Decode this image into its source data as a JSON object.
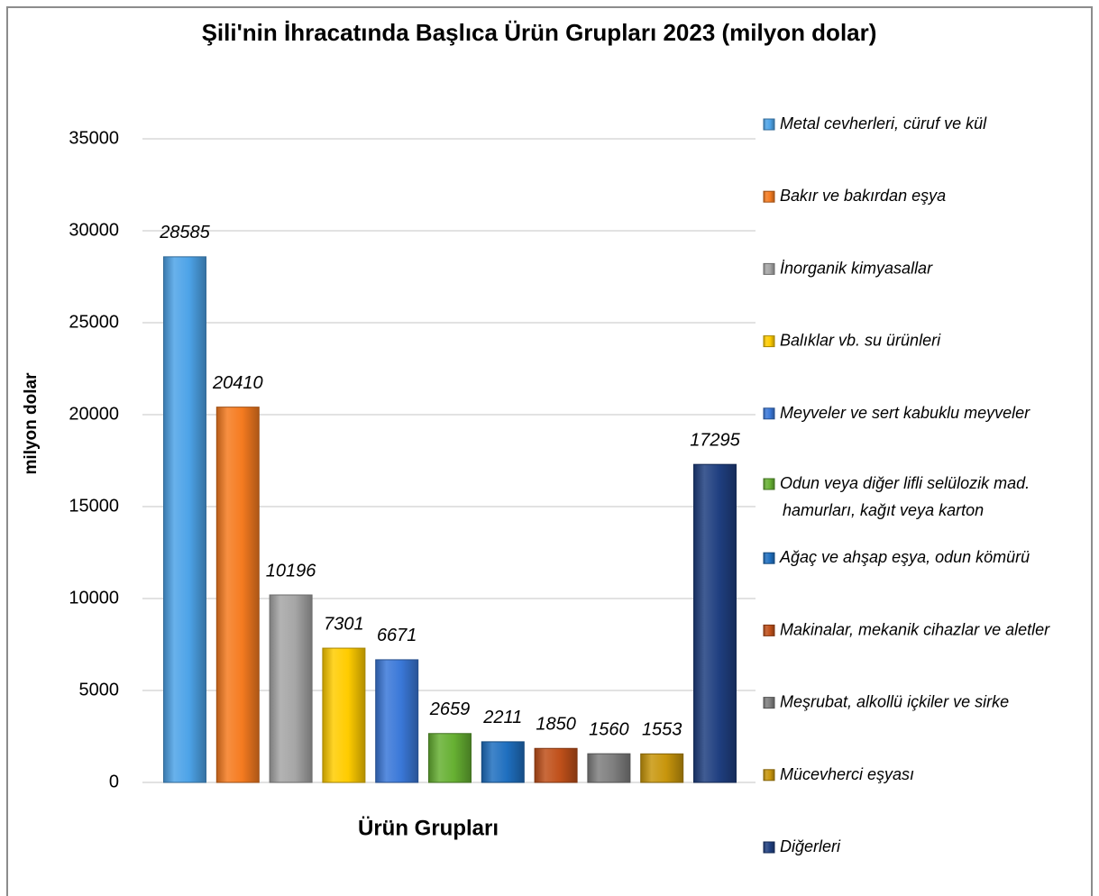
{
  "chart_data": {
    "type": "bar",
    "title": "Şili'nin İhracatında Başlıca Ürün Grupları 2023 (milyon dolar)",
    "x_label": "Ürün Grupları",
    "y_label": "milyon dolar",
    "categories": [
      "Metal cevherleri, cüruf ve kül",
      "Bakır ve bakırdan eşya",
      "İnorganik kimyasallar",
      "Balıklar vb. su ürünleri",
      "Meyveler ve sert kabuklu meyveler",
      "Odun veya diğer lifli selülozik mad. hamurları, kağıt veya karton",
      "Ağaç ve ahşap eşya, odun kömürü",
      "Makinalar, mekanik cihazlar ve aletler",
      "Meşrubat, alkollü içkiler ve sirke",
      "Mücevherci eşyası",
      "Diğerleri"
    ],
    "values": [
      28585,
      20410,
      10196,
      7301,
      6671,
      2659,
      2211,
      1850,
      1560,
      1553,
      17295
    ],
    "colors": [
      "#4da3e8",
      "#f57b20",
      "#a6a6a6",
      "#ffcc00",
      "#3a78d8",
      "#66b032",
      "#1f6fbf",
      "#c0501a",
      "#7f7f7f",
      "#c8960c",
      "#1f3f80"
    ],
    "ylim": [
      0,
      35000
    ],
    "yticks": [
      0,
      5000,
      10000,
      15000,
      20000,
      25000,
      30000,
      35000
    ],
    "grid": true,
    "legend": "right"
  }
}
